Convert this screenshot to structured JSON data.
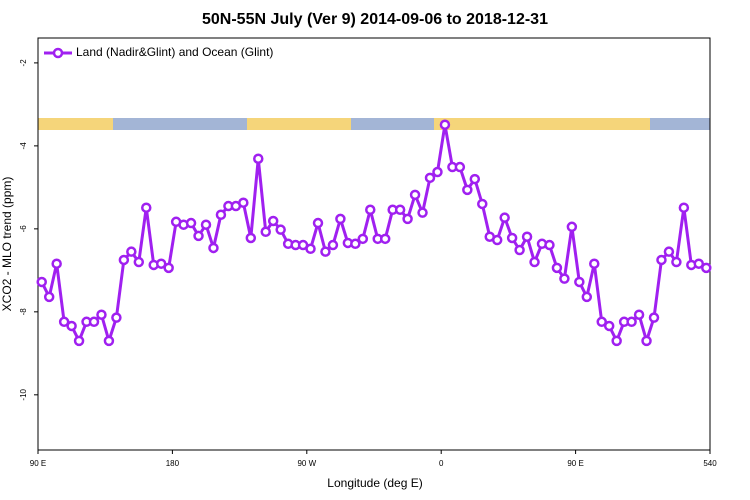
{
  "chart_data": {
    "type": "line",
    "title": "50N-55N July (Ver 9)   2014-09-06 to 2018-12-31",
    "x_label": "Longitude (deg E)",
    "y_label": "XCO2 - MLO trend (ppm)",
    "xlim": [
      90,
      540
    ],
    "ylim": [
      -11.33,
      -1.4
    ],
    "xticks": [
      {
        "value": 90,
        "label": "90 E"
      },
      180,
      {
        "value": 270,
        "label": "90 W"
      },
      {
        "value": 360,
        "label": "0"
      },
      {
        "value": 450,
        "label": "90 E"
      },
      540
    ],
    "yticks": [
      -2,
      -4,
      -6,
      -8,
      -10
    ],
    "legend": "top-left",
    "x": [
      92.5,
      97.5,
      102.5,
      107.5,
      112.5,
      117.5,
      122.5,
      127.5,
      132.5,
      137.5,
      142.5,
      147.5,
      152.5,
      157.5,
      162.5,
      167.5,
      172.5,
      177.5,
      182.5,
      187.5,
      192.5,
      197.5,
      202.5,
      207.5,
      212.5,
      217.5,
      222.5,
      227.5,
      232.5,
      237.5,
      242.5,
      247.5,
      252.5,
      257.5,
      262.5,
      267.5,
      272.5,
      277.5,
      282.5,
      287.5,
      292.5,
      297.5,
      302.5,
      307.5,
      312.5,
      317.5,
      322.5,
      327.5,
      332.5,
      337.5,
      342.5,
      347.5,
      352.5,
      357.5,
      362.5,
      367.5,
      372.5,
      377.5,
      382.5,
      387.5,
      392.5,
      397.5,
      402.5,
      407.5,
      412.5,
      417.5,
      422.5,
      427.5,
      432.5,
      437.5,
      442.5,
      447.5,
      452.5,
      457.5,
      462.5,
      467.5,
      472.5,
      477.5,
      482.5,
      487.5,
      492.5,
      497.5,
      502.5,
      507.5,
      512.5,
      517.5,
      522.5,
      527.5,
      532.5,
      537.5
    ],
    "series": [
      {
        "name": "Land (Nadir&Glint) and Ocean (Glint)",
        "color": "#a020f0",
        "values": [
          -7.28,
          -7.64,
          -6.84,
          -8.24,
          -8.34,
          -8.7,
          -8.24,
          -8.24,
          -8.07,
          -8.7,
          -8.14,
          -6.75,
          -6.55,
          -6.8,
          -5.49,
          -6.87,
          -6.84,
          -6.94,
          -5.83,
          -5.9,
          -5.86,
          -6.17,
          -5.9,
          -6.46,
          -5.66,
          -5.45,
          -5.45,
          -5.37,
          -6.22,
          -4.31,
          -6.07,
          -5.81,
          -6.02,
          -6.36,
          -6.39,
          -6.39,
          -6.48,
          -5.86,
          -6.55,
          -6.39,
          -5.76,
          -6.34,
          -6.36,
          -6.24,
          -5.54,
          -6.24,
          -6.24,
          -5.54,
          -5.54,
          -5.76,
          -5.18,
          -5.61,
          -4.77,
          -4.63,
          -3.49,
          -4.51,
          -4.51,
          -5.06,
          -4.8,
          -5.4,
          -6.19,
          -6.27,
          -5.73,
          -6.22,
          -6.51,
          -6.19,
          -6.8,
          -6.36,
          -6.39,
          -6.94,
          -7.2,
          -5.95,
          -7.28,
          -7.64,
          -6.84,
          -8.24,
          -8.34,
          -8.7,
          -8.24,
          -8.24,
          -8.07,
          -8.7,
          -8.14,
          -6.75,
          -6.55,
          -6.8,
          -5.49,
          -6.87,
          -6.84,
          -6.94
        ]
      }
    ]
  }
}
